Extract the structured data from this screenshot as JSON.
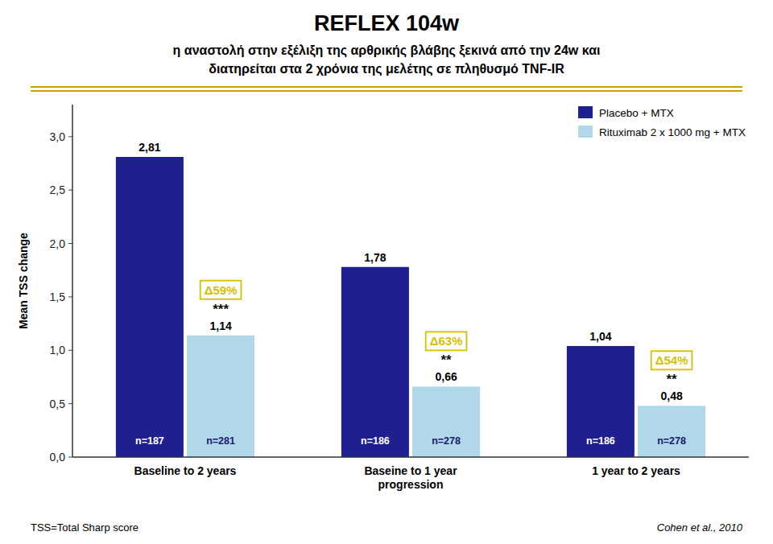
{
  "chart_data": {
    "type": "bar",
    "title": "REFLEX 104w",
    "subtitle": [
      "η αναστολή στην εξέλιξη της αρθρικής βλάβης ξεκινά από την 24w και",
      "διατηρείται στα 2 χρόνια της μελέτης σε πληθυσμό TNF-IR"
    ],
    "categories": [
      "Baseline to 2 years",
      "Baseine to 1 year\nprogression",
      "1 year to 2 years"
    ],
    "series": [
      {
        "name": "Placebo + MTX",
        "color": "#1f1f8f",
        "values": [
          2.81,
          1.78,
          1.04
        ],
        "value_labels": [
          "2,81",
          "1,78",
          "1,04"
        ],
        "n_labels": [
          "n=187",
          "n=186",
          "n=186"
        ]
      },
      {
        "name": "Rituximab 2 x 1000 mg + MTX",
        "color": "#b0d8e8",
        "values": [
          1.14,
          0.66,
          0.48
        ],
        "value_labels": [
          "1,14",
          "0,66",
          "0,48"
        ],
        "n_labels": [
          "n=281",
          "n=278",
          "n=278"
        ]
      }
    ],
    "delta_labels": [
      "Δ59%",
      "Δ63%",
      "Δ54%"
    ],
    "sig_labels": [
      "***",
      "**",
      "**"
    ],
    "y_label": "Mean TSS change",
    "ylim": [
      0.0,
      3.3
    ],
    "yticks": [
      {
        "value": 0.0,
        "label": "0,0"
      },
      {
        "value": 0.5,
        "label": "0,5"
      },
      {
        "value": 1.0,
        "label": "1,0"
      },
      {
        "value": 1.5,
        "label": "1,5"
      },
      {
        "value": 2.0,
        "label": "2,0"
      },
      {
        "value": 2.5,
        "label": "2,5"
      },
      {
        "value": 3.0,
        "label": "3,0"
      }
    ],
    "data_labels": true,
    "grid": false,
    "legend": "upper right",
    "footnotes": [
      "TSS=Total Sharp score",
      "Cohen et al., 2010"
    ]
  }
}
